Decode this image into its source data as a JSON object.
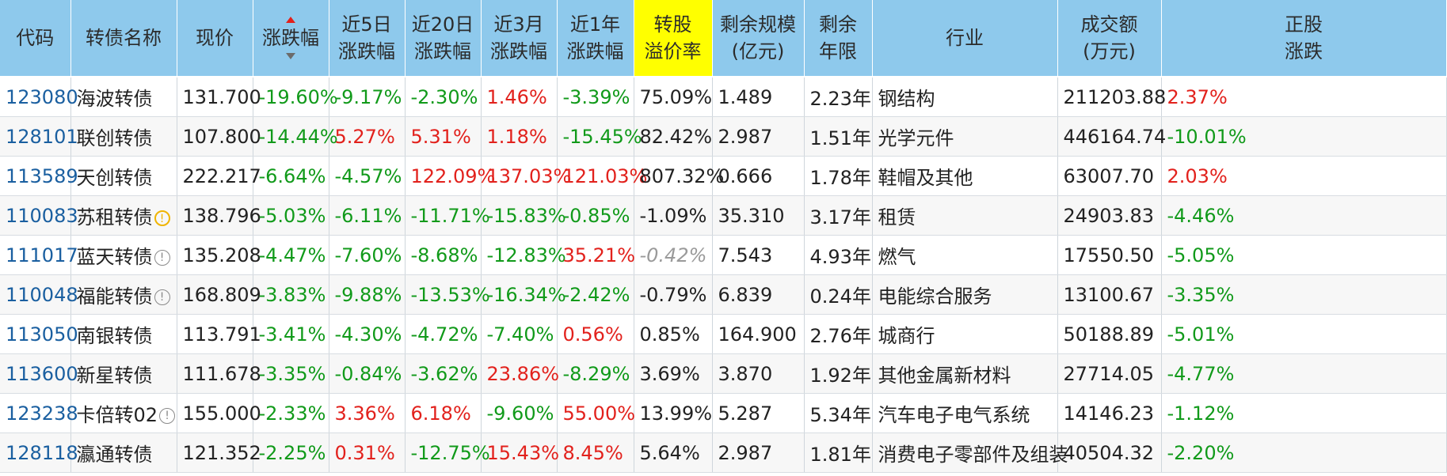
{
  "columns": [
    {
      "key": "code",
      "label": "代码"
    },
    {
      "key": "name",
      "label": "转债名称"
    },
    {
      "key": "price",
      "label": "现价"
    },
    {
      "key": "chg",
      "label": "涨跌幅"
    },
    {
      "key": "chg5d",
      "label": "近5日\n涨跌幅"
    },
    {
      "key": "chg20d",
      "label": "近20日\n涨跌幅"
    },
    {
      "key": "chg3m",
      "label": "近3月\n涨跌幅"
    },
    {
      "key": "chg1y",
      "label": "近1年\n涨跌幅"
    },
    {
      "key": "premium",
      "label": "转股\n溢价率"
    },
    {
      "key": "scale",
      "label": "剩余规模\n(亿元)"
    },
    {
      "key": "years",
      "label": "剩余\n年限"
    },
    {
      "key": "industry",
      "label": "行业"
    },
    {
      "key": "amount",
      "label": "成交额\n(万元)"
    },
    {
      "key": "stockchg",
      "label": "正股\n涨跌"
    }
  ],
  "sort_column": "chg",
  "highlight_column": "premium",
  "colors": {
    "header_bg": "#8ec9ec",
    "highlight": "#ffff00",
    "up": "#e2211c",
    "down": "#119a1a",
    "code": "#1a5fa0"
  },
  "rows": [
    {
      "code": "123080",
      "name": "海波转债",
      "badge": "",
      "price": "131.700",
      "chg": "-19.60%",
      "chg5d": "-9.17%",
      "chg20d": "-2.30%",
      "chg3m": "1.46%",
      "chg1y": "-3.39%",
      "premium": "75.09%",
      "scale": "1.489",
      "years": "2.23年",
      "industry": "钢结构",
      "amount": "211203.88",
      "stockchg": "2.37%"
    },
    {
      "code": "128101",
      "name": "联创转债",
      "badge": "",
      "price": "107.800",
      "chg": "-14.44%",
      "chg5d": "5.27%",
      "chg20d": "5.31%",
      "chg3m": "1.18%",
      "chg1y": "-15.45%",
      "premium": "82.42%",
      "scale": "2.987",
      "years": "1.51年",
      "industry": "光学元件",
      "amount": "446164.74",
      "stockchg": "-10.01%"
    },
    {
      "code": "113589",
      "name": "天创转债",
      "badge": "",
      "price": "222.217",
      "chg": "-6.64%",
      "chg5d": "-4.57%",
      "chg20d": "122.09%",
      "chg3m": "137.03%",
      "chg1y": "121.03%",
      "premium": "807.32%",
      "scale": "0.666",
      "years": "1.78年",
      "industry": "鞋帽及其他",
      "amount": "63007.70",
      "stockchg": "2.03%"
    },
    {
      "code": "110083",
      "name": "苏租转债",
      "badge": "yellow",
      "price": "138.796",
      "chg": "-5.03%",
      "chg5d": "-6.11%",
      "chg20d": "-11.71%",
      "chg3m": "-15.83%",
      "chg1y": "-0.85%",
      "premium": "-1.09%",
      "scale": "35.310",
      "years": "3.17年",
      "industry": "租赁",
      "amount": "24903.83",
      "stockchg": "-4.46%"
    },
    {
      "code": "111017",
      "name": "蓝天转债",
      "badge": "grey",
      "price": "135.208",
      "chg": "-4.47%",
      "chg5d": "-7.60%",
      "chg20d": "-8.68%",
      "chg3m": "-12.83%",
      "chg1y": "35.21%",
      "premium": "-0.42%",
      "premium_style": "grey",
      "scale": "7.543",
      "years": "4.93年",
      "industry": "燃气",
      "amount": "17550.50",
      "stockchg": "-5.05%"
    },
    {
      "code": "110048",
      "name": "福能转债",
      "badge": "grey",
      "price": "168.809",
      "chg": "-3.83%",
      "chg5d": "-9.88%",
      "chg20d": "-13.53%",
      "chg3m": "-16.34%",
      "chg1y": "-2.42%",
      "premium": "-0.79%",
      "scale": "6.839",
      "years": "0.24年",
      "industry": "电能综合服务",
      "amount": "13100.67",
      "stockchg": "-3.35%"
    },
    {
      "code": "113050",
      "name": "南银转债",
      "badge": "",
      "price": "113.791",
      "chg": "-3.41%",
      "chg5d": "-4.30%",
      "chg20d": "-4.72%",
      "chg3m": "-7.40%",
      "chg1y": "0.56%",
      "premium": "0.85%",
      "scale": "164.900",
      "years": "2.76年",
      "industry": "城商行",
      "amount": "50188.89",
      "stockchg": "-5.01%"
    },
    {
      "code": "113600",
      "name": "新星转债",
      "badge": "",
      "price": "111.678",
      "chg": "-3.35%",
      "chg5d": "-0.84%",
      "chg20d": "-3.62%",
      "chg3m": "23.86%",
      "chg1y": "-8.29%",
      "premium": "3.69%",
      "scale": "3.870",
      "years": "1.92年",
      "industry": "其他金属新材料",
      "amount": "27714.05",
      "stockchg": "-4.77%"
    },
    {
      "code": "123238",
      "name": "卡倍转02",
      "badge": "grey",
      "price": "155.000",
      "chg": "-2.33%",
      "chg5d": "3.36%",
      "chg20d": "6.18%",
      "chg3m": "-9.60%",
      "chg1y": "55.00%",
      "premium": "13.99%",
      "scale": "5.287",
      "years": "5.34年",
      "industry": "汽车电子电气系统",
      "amount": "14146.23",
      "stockchg": "-1.12%"
    },
    {
      "code": "128118",
      "name": "瀛通转债",
      "badge": "",
      "price": "121.352",
      "chg": "-2.25%",
      "chg5d": "0.31%",
      "chg20d": "-12.75%",
      "chg3m": "15.43%",
      "chg1y": "8.45%",
      "premium": "5.64%",
      "scale": "2.987",
      "years": "1.81年",
      "industry": "消费电子零部件及组装",
      "amount": "40504.32",
      "stockchg": "-2.20%"
    }
  ]
}
